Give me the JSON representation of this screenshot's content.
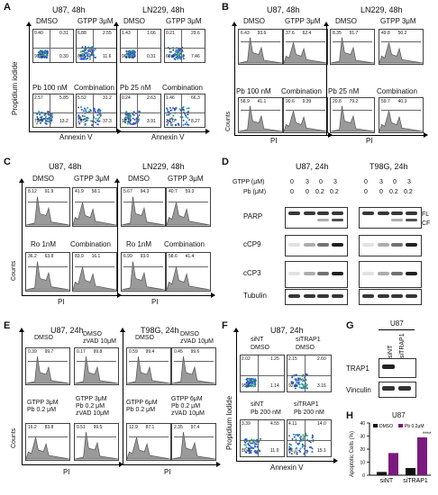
{
  "panelA": {
    "letter": "A",
    "u87_title": "U87, 48h",
    "ln229_title": "LN229, 48h",
    "conds_u87": [
      "DMSO",
      "GTPP 3μM",
      "Pb 100 nM",
      "Combination"
    ],
    "conds_ln229": [
      "DMSO",
      "GTPP 3μM",
      "Pb 25 nM",
      "Combination"
    ],
    "ylabel": "Propidium iodide",
    "xlabel": "Annexin V",
    "u87_values": [
      [
        "0.40",
        "0.31",
        "99.0",
        "0.30"
      ],
      [
        "6.88",
        "2.55",
        "85.5",
        "11.6"
      ],
      [
        "2.57",
        "5.85",
        "78.6",
        "13.2"
      ],
      [
        "5.52",
        "31.2",
        "25.9",
        "37.3"
      ]
    ],
    "ln229_values": [
      [
        "1.43",
        "1.66",
        "96.6",
        "0.31"
      ],
      [
        "0.21",
        "29.6",
        "62.4",
        "7.46"
      ],
      [
        "0.24",
        "2.63",
        "93.8",
        "3.91"
      ],
      [
        "1.46",
        "66.3",
        "24.0",
        "8.27"
      ]
    ]
  },
  "panelB": {
    "letter": "B",
    "u87_title": "U87, 48h",
    "ln229_title": "LN229, 48h",
    "conds_u87": [
      "DMSO",
      "GTPP 3μM",
      "Pb 100 nM",
      "Combination"
    ],
    "conds_ln229": [
      "DMSO",
      "GTPP 3μM",
      "Pb 25 nM",
      "Combination"
    ],
    "ylabel": "Counts",
    "xlabel": "PI",
    "u87_values": [
      [
        "6.43",
        "93.6"
      ],
      [
        "37.6",
        "62.4"
      ],
      [
        "58.9",
        "41.1"
      ],
      [
        "90.6",
        "9.39"
      ]
    ],
    "ln229_values": [
      [
        "8.35",
        "91.7"
      ],
      [
        "49.8",
        "50.2"
      ],
      [
        "20.8",
        "79.2"
      ],
      [
        "59.7",
        "40.3"
      ]
    ]
  },
  "panelC": {
    "letter": "C",
    "u87_title": "U87, 48h",
    "ln229_title": "LN229, 48h",
    "conds": [
      "DMSO",
      "GTPP 3μM",
      "Ro 1nM",
      "Combination"
    ],
    "ylabel": "Counts",
    "xlabel": "PI",
    "u87_values": [
      [
        "8.12",
        "91.9"
      ],
      [
        "41.9",
        "58.1"
      ],
      [
        "36.2",
        "63.8"
      ],
      [
        "83.9",
        "16.1"
      ]
    ],
    "ln229_values": [
      [
        "5.67",
        "94.3"
      ],
      [
        "40.7",
        "59.3"
      ],
      [
        "6.99",
        "93.0"
      ],
      [
        "58.6",
        "41.4"
      ]
    ]
  },
  "panelD": {
    "letter": "D",
    "u87_title": "U87, 24h",
    "t98g_title": "T98G, 24h",
    "gtpp_label": "GTPP (μM)",
    "pb_label": "Pb (μM)",
    "gtpp_vals": [
      "0",
      "3",
      "0",
      "3",
      "0",
      "3",
      "0",
      "3"
    ],
    "pb_vals": [
      "0",
      "0",
      "0.2",
      "0.2",
      "0",
      "0",
      "0.2",
      "0.2"
    ],
    "blots": [
      "PARP",
      "cCP9",
      "cCP3",
      "Tubulin"
    ],
    "fl": "FL",
    "cf": "CF"
  },
  "panelE": {
    "letter": "E",
    "u87_title": "U87, 24h",
    "t98g_title": "T98G, 24h",
    "u87_conds": [
      [
        "DMSO"
      ],
      [
        "DMSO",
        "zVAD 10μM"
      ],
      [
        "GTPP 3μM",
        "Pb 0.2 μM"
      ],
      [
        "GTPP 3μM",
        "Pb 0.2 μM",
        "zVAD 10μM"
      ]
    ],
    "t98g_conds": [
      [
        "DMSO"
      ],
      [
        "DMSO",
        "zVAD 10μM"
      ],
      [
        "GTPP 6μM",
        "Pb 0.2 μM"
      ],
      [
        "GTPP 6μM",
        "Pb 0.2 μM",
        "zVAD 10μM"
      ]
    ],
    "ylabel": "Counts",
    "xlabel": "PI",
    "u87_values": [
      [
        "0.39",
        "99.7"
      ],
      [
        "0.17",
        "99.8"
      ],
      [
        "16.2",
        "83.8"
      ],
      [
        "0.51",
        "99.5"
      ]
    ],
    "t98g_values": [
      [
        "0.59",
        "99.4"
      ],
      [
        "0.45",
        "99.6"
      ],
      [
        "12.9",
        "87.1"
      ],
      [
        "2.35",
        "97.4"
      ]
    ]
  },
  "panelF": {
    "letter": "F",
    "title": "U87, 24h",
    "conds": [
      [
        "siNT",
        "DMSO"
      ],
      [
        "siTRAP1",
        "DMSO"
      ],
      [
        "siNT",
        "Pb 200 nM"
      ],
      [
        "siTRAP1",
        "Pb 200 nM"
      ]
    ],
    "ylabel": "Propidium Iodide",
    "xlabel": "Annexin V",
    "values": [
      [
        "2.02",
        "1.25",
        "95.6",
        "1.14"
      ],
      [
        "2.15",
        "2.60",
        "92.1",
        "3.16"
      ],
      [
        "3.39",
        "4.55",
        "80.2",
        "11.9"
      ],
      [
        "4.11",
        "14.0",
        "66.0",
        "15.1"
      ]
    ]
  },
  "panelG": {
    "letter": "G",
    "title": "U87",
    "lanes": [
      "siNT",
      "siTRAP1"
    ],
    "blots": [
      "TRAP1",
      "Vinculin"
    ]
  },
  "panelH": {
    "letter": "H",
    "title": "U87",
    "legend": [
      "DMSO",
      "Pb 0.2μM"
    ],
    "ylabel": "Apoptotic Cells (%)",
    "sig": "****",
    "colors": {
      "dmso": "#111111",
      "pb": "#7b1a7e"
    }
  },
  "chart_data": {
    "type": "bar",
    "title": "U87",
    "categories": [
      "siNT",
      "siTRAP1"
    ],
    "series": [
      {
        "name": "DMSO",
        "values": [
          2.5,
          5.5
        ]
      },
      {
        "name": "Pb 0.2μM",
        "values": [
          17,
          29
        ]
      }
    ],
    "ylabel": "Apoptotic Cells (%)",
    "xlabel": "",
    "ylim": [
      0,
      40
    ],
    "yticks": [
      0,
      10,
      20,
      30,
      40
    ],
    "annotations": [
      "****"
    ]
  }
}
